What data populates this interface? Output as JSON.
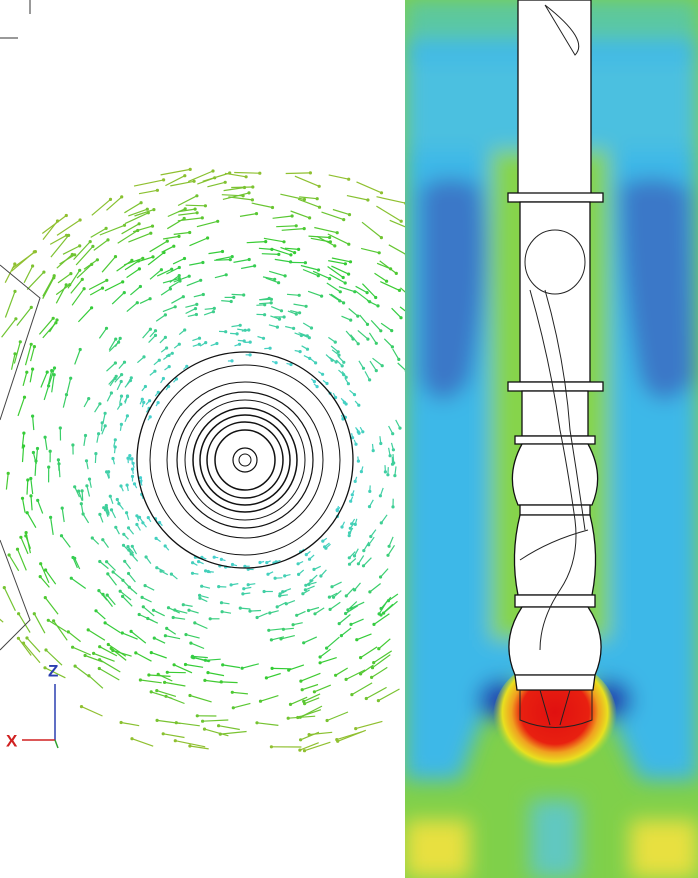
{
  "axes": {
    "z_label": "Z",
    "x_label": "X"
  }
}
